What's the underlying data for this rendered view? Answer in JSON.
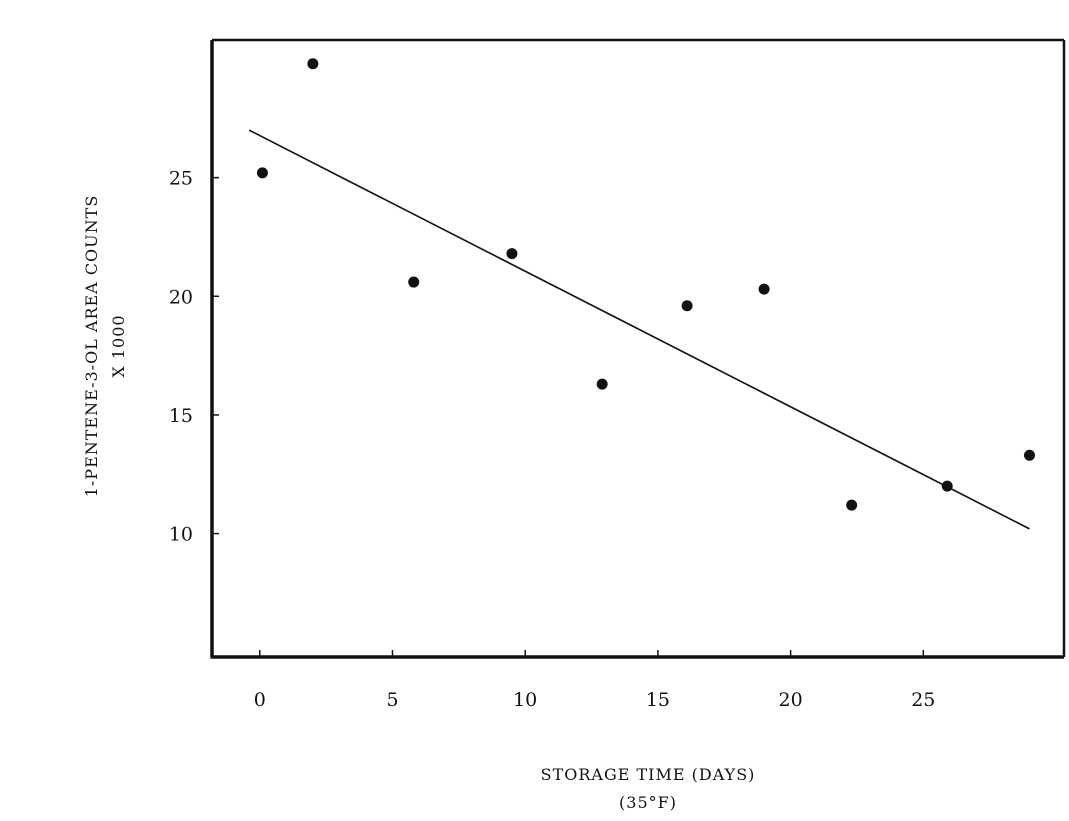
{
  "chart_data": {
    "type": "scatter",
    "xlabel": "STORAGE TIME (DAYS)",
    "xlabel_sub": "(35°F)",
    "ylabel": "1-PENTENE-3-OL  AREA COUNTS",
    "ylabel_sub": "X 1000",
    "xlim": [
      -1.8,
      30.3
    ],
    "ylim": [
      4.8,
      30.8
    ],
    "x_ticks": [
      {
        "value": 0,
        "label": "0"
      },
      {
        "value": 5,
        "label": "5"
      },
      {
        "value": 10,
        "label": "10"
      },
      {
        "value": 15,
        "label": "15"
      },
      {
        "value": 20,
        "label": "20"
      },
      {
        "value": 25,
        "label": "25"
      }
    ],
    "y_ticks": [
      {
        "value": 10,
        "label": "10"
      },
      {
        "value": 15,
        "label": "15"
      },
      {
        "value": 20,
        "label": "20"
      },
      {
        "value": 25,
        "label": "25"
      }
    ],
    "grid": false,
    "series": [
      {
        "type": "scatter",
        "x": [
          0.1,
          2.0,
          5.8,
          9.5,
          12.9,
          16.1,
          19.0,
          22.3,
          25.9,
          29.0
        ],
        "y": [
          25.2,
          29.8,
          20.6,
          21.8,
          16.3,
          19.6,
          20.3,
          11.2,
          12.0,
          13.3
        ]
      },
      {
        "type": "line",
        "x": [
          -0.4,
          29.0
        ],
        "y": [
          27.0,
          10.2
        ]
      }
    ],
    "colors": {
      "ink": "#111111",
      "background": "#ffffff"
    }
  }
}
